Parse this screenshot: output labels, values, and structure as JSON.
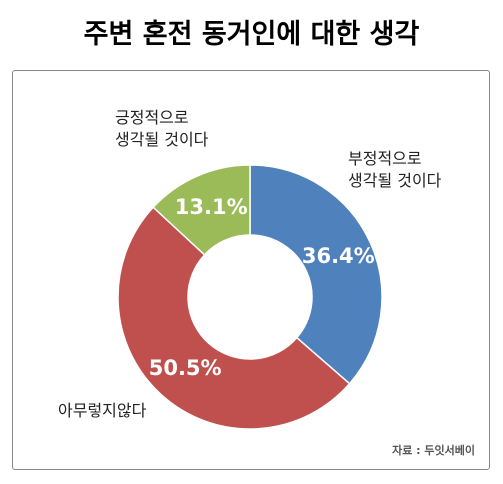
{
  "chart_data": {
    "type": "donut",
    "title": "주변 혼전 동거인에 대한 생각",
    "categories": [
      "부정적으로\n생각될 것이다",
      "아무렇지않다",
      "긍정적으로\n생각될 것이다"
    ],
    "values": [
      36.4,
      50.5,
      13.1
    ],
    "value_labels": [
      "36.4%",
      "50.5%",
      "13.1%"
    ],
    "colors": [
      "#4f81bd",
      "#c0504d",
      "#9bbb59"
    ],
    "source": "자료 : 두잇서베이"
  }
}
